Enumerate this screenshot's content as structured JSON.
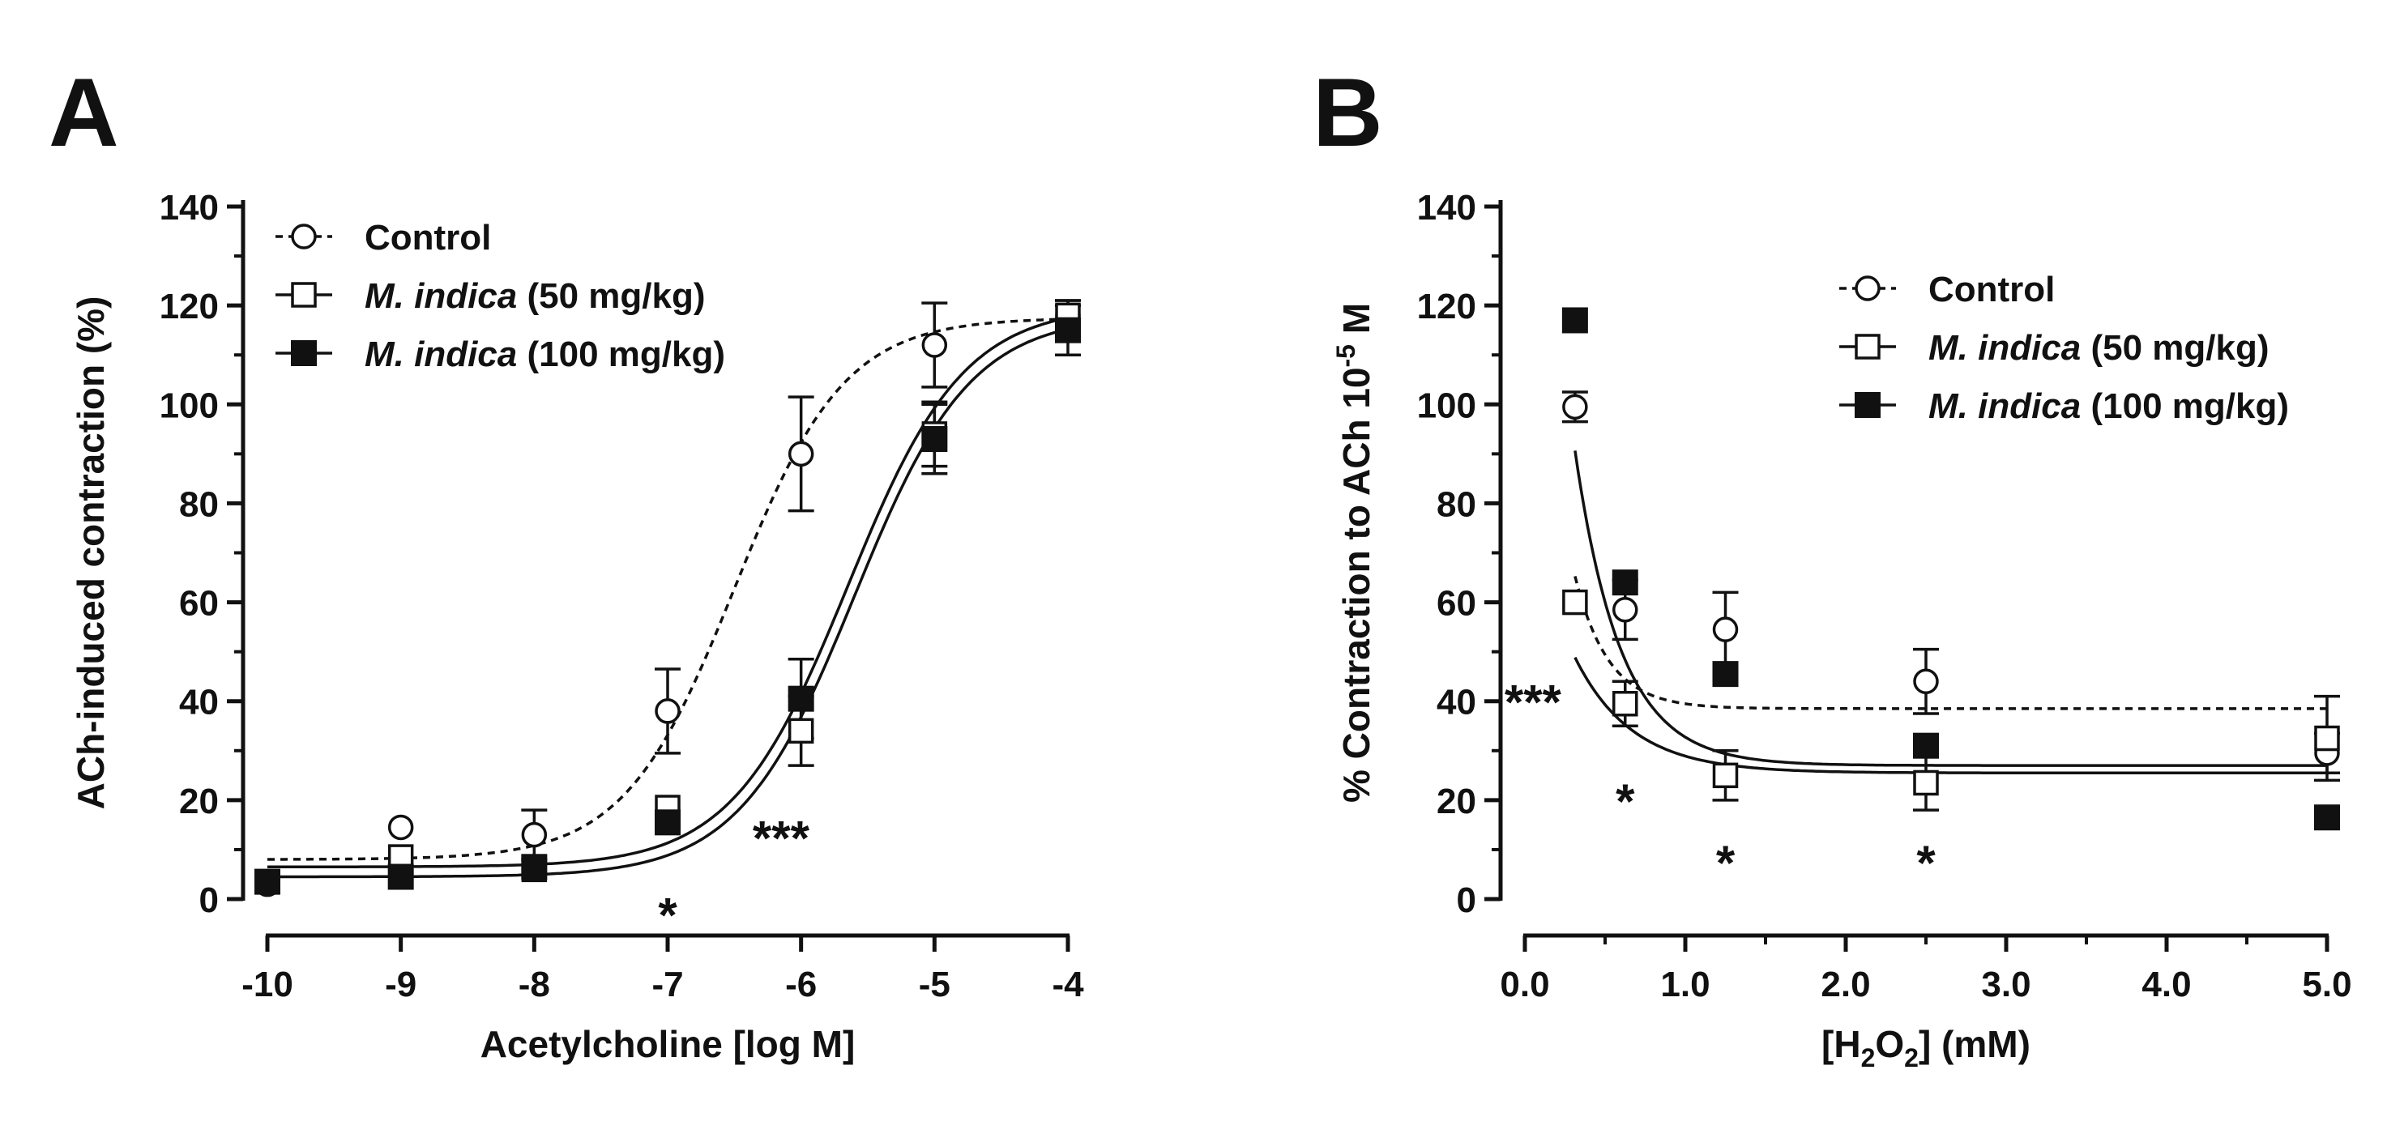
{
  "chart_data": [
    {
      "panel": "A",
      "type": "scatter",
      "xlabel": "Acetylcholine [log M]",
      "ylabel": "ACh-induced contraction (%)",
      "xlim": [
        -10,
        -4
      ],
      "ylim": [
        0,
        140
      ],
      "xticks": [
        -10,
        -9,
        -8,
        -7,
        -6,
        -5,
        -4
      ],
      "xtick_labels": [
        "-10",
        "-9",
        "-8",
        "-7",
        "-6",
        "-5",
        "-4"
      ],
      "yticks": [
        0,
        20,
        40,
        60,
        80,
        100,
        120,
        140
      ],
      "ytick_labels": [
        "0",
        "20",
        "40",
        "60",
        "80",
        "100",
        "120",
        "140"
      ],
      "legend_position": "top-left",
      "series": [
        {
          "name": "Control",
          "name_italic": "",
          "name_rest": "Control",
          "marker": "open-circle",
          "line": "dashed",
          "x": [
            -10,
            -9,
            -8,
            -7,
            -6,
            -5,
            -4
          ],
          "y": [
            3,
            14.5,
            13,
            38,
            90,
            112,
            118
          ],
          "err": [
            0,
            0,
            5,
            8.5,
            11.5,
            8.5,
            3
          ],
          "fit": {
            "bottom": 8,
            "top": 117.5,
            "logEC50": -6.5,
            "hill": 1.05
          }
        },
        {
          "name": "M. indica (50 mg/kg)",
          "name_italic": "M. indica",
          "name_rest": " (50 mg/kg)",
          "marker": "open-square",
          "line": "solid",
          "x": [
            -10,
            -9,
            -8,
            -7,
            -6,
            -5,
            -4
          ],
          "y": [
            3.5,
            8.5,
            6,
            18.5,
            34,
            94,
            118
          ],
          "err": [
            0,
            0,
            0,
            0,
            7,
            6.5,
            3
          ],
          "fit": {
            "bottom": 6.5,
            "top": 120,
            "logEC50": -5.65,
            "hill": 1.0
          }
        },
        {
          "name": "M. indica (100 mg/kg)",
          "name_italic": "M. indica",
          "name_rest": " (100 mg/kg)",
          "marker": "filled-square",
          "line": "solid",
          "x": [
            -10,
            -9,
            -8,
            -7,
            -6,
            -5,
            -4
          ],
          "y": [
            3.5,
            4.5,
            6.5,
            15.5,
            40.5,
            93,
            115
          ],
          "err": [
            0,
            0,
            0,
            0,
            8,
            7,
            5
          ],
          "fit": {
            "bottom": 4.5,
            "top": 118,
            "logEC50": -5.6,
            "hill": 1.0
          }
        }
      ],
      "annotations": [
        {
          "text": "*",
          "x": -7,
          "y": -3
        },
        {
          "text": "***",
          "x": -6.15,
          "y": 12.5
        }
      ]
    },
    {
      "panel": "B",
      "type": "scatter",
      "xlabel_prefix": "[H",
      "xlabel_sub1": "2",
      "xlabel_mid": "O",
      "xlabel_sub2": "2",
      "xlabel_suffix": "] (mM)",
      "ylabel_prefix": "% Contraction to ACh 10",
      "ylabel_sup": "-5",
      "ylabel_suffix": " M",
      "xlim": [
        0,
        5
      ],
      "ylim": [
        0,
        140
      ],
      "xticks": [
        0,
        1,
        2,
        3,
        4,
        5
      ],
      "xtick_labels": [
        "0.0",
        "1.0",
        "2.0",
        "3.0",
        "4.0",
        "5.0"
      ],
      "yticks": [
        0,
        20,
        40,
        60,
        80,
        100,
        120,
        140
      ],
      "ytick_labels": [
        "0",
        "20",
        "40",
        "60",
        "80",
        "100",
        "120",
        "140"
      ],
      "legend_position": "top-right",
      "series": [
        {
          "name": "Control",
          "name_italic": "",
          "name_rest": "Control",
          "marker": "open-circle",
          "line": "dashed",
          "x": [
            0.3125,
            0.625,
            1.25,
            2.5,
            5
          ],
          "y": [
            99.5,
            58.5,
            54.5,
            44,
            29.5
          ],
          "err": [
            3,
            6,
            7.5,
            6.5,
            4
          ],
          "fit": {
            "plateau": 38.5,
            "span": 120,
            "k": 4.8
          }
        },
        {
          "name": "M. indica (50 mg/kg)",
          "name_italic": "M. indica",
          "name_rest": " (50 mg/kg)",
          "marker": "open-square",
          "line": "solid",
          "x": [
            0.3125,
            0.625,
            1.25,
            2.5,
            5
          ],
          "y": [
            60,
            39.5,
            25,
            23.5,
            32.5
          ],
          "err": [
            0,
            4.5,
            5,
            5.5,
            8.5
          ],
          "fit": {
            "plateau": 25.5,
            "span": 56,
            "k": 2.8
          }
        },
        {
          "name": "M. indica (100 mg/kg)",
          "name_italic": "M. indica",
          "name_rest": " (100 mg/kg)",
          "marker": "filled-square",
          "line": "solid",
          "x": [
            0.3125,
            0.625,
            1.25,
            2.5,
            5
          ],
          "y": [
            117,
            64,
            45.5,
            31,
            16.5
          ],
          "err": [
            0,
            0,
            0,
            0,
            0
          ],
          "fit": {
            "plateau": 27,
            "span": 190,
            "k": 3.5
          }
        }
      ],
      "annotations": [
        {
          "text": "***",
          "x": 0.05,
          "y": 40
        },
        {
          "text": "*",
          "x": 0.625,
          "y": 20
        },
        {
          "text": "*",
          "x": 1.25,
          "y": 7.5
        },
        {
          "text": "*",
          "x": 2.5,
          "y": 7.5
        }
      ]
    }
  ]
}
